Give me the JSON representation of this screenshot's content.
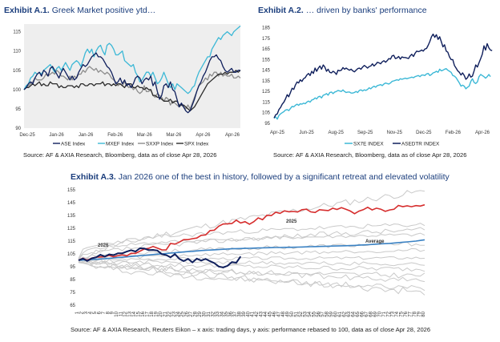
{
  "exhibits": {
    "a1": {
      "label": "Exhibit A.1.",
      "subtitle": " Greek Market positive ytd…",
      "source": "Source: AF & AXIA Research, Bloomberg, data as of close Apr 28, 2026"
    },
    "a2": {
      "label": "Exhibit A.2.",
      "subtitle": " … driven by banks' performance",
      "source": "Source: AF & AXIA Research, Bloomberg, data as of close Apr 28, 2026"
    },
    "a3": {
      "label": "Exhibit A.3.",
      "subtitle": " Jan 2026 one of the best in history, followed by a significant retreat and elevated volatility",
      "source": "Source: AF & AXIA Research, Reuters Eikon – x axis: trading days, y axis: performance rebased to 100, data as of close Apr 28, 2026"
    }
  },
  "colors": {
    "navy": "#0f1f5c",
    "teal": "#3cb8d6",
    "gray": "#8c8c8c",
    "dark": "#2b2b2b",
    "red": "#d62d2d",
    "blue": "#3a82c4",
    "light": "#c9c9c9"
  },
  "chart_data": [
    {
      "type": "line",
      "title": "Greek Market positive ytd…",
      "x_ticks": [
        "Dec-25",
        "Jan-26",
        "Jan-26",
        "Feb-26",
        "Mar-26",
        "Mar-26",
        "Apr-26",
        "Apr-26"
      ],
      "y_ticks": [
        90,
        95,
        100,
        105,
        110,
        115
      ],
      "ylim": [
        90,
        117
      ],
      "n_points": 100,
      "series": [
        {
          "name": "ASE Index",
          "color": "#0f1f5c",
          "values": [
            100,
            100.5,
            101.5,
            102,
            101.5,
            103,
            104,
            104.5,
            103.5,
            105,
            104.5,
            103.5,
            105.5,
            106,
            105,
            104,
            103,
            104.5,
            105.5,
            104.5,
            103.5,
            102.5,
            103.5,
            102.5,
            103,
            104.5,
            105.5,
            106.5,
            106,
            106.5,
            107.5,
            108.5,
            109,
            109.5,
            108.5,
            108.5,
            108,
            107,
            106,
            105.5,
            104.5,
            103,
            101.5,
            102,
            103,
            101.5,
            102.5,
            101,
            101.5,
            100.5,
            101.5,
            103,
            103.5,
            103,
            101.5,
            102.5,
            103,
            102.5,
            103.5,
            101,
            102,
            99.5,
            97.5,
            98.5,
            101,
            101.5,
            100.5,
            102,
            100,
            99.5,
            97.5,
            95.5,
            96.5,
            95.5,
            94.5,
            94,
            94.5,
            96,
            97.5,
            99.5,
            101,
            102,
            103.5,
            104.5,
            106,
            107.5,
            108.5,
            108.5,
            109,
            108,
            107.5,
            106,
            105,
            104.5,
            105,
            105.5,
            104.5,
            104.5,
            105,
            105
          ]
        },
        {
          "name": "MXEF Index",
          "color": "#3cb8d6",
          "values": [
            100,
            101,
            101.5,
            103,
            103.5,
            104.5,
            104,
            104.5,
            104,
            105,
            105.5,
            106,
            106.5,
            105.5,
            104.5,
            105.5,
            106,
            105,
            106,
            107,
            106,
            105,
            106.5,
            107,
            107.5,
            107,
            106,
            107.5,
            109.5,
            110.5,
            109.5,
            110.5,
            108.5,
            110,
            111,
            111.5,
            110,
            109,
            111.5,
            112,
            111.5,
            110.5,
            109,
            109,
            109.5,
            110,
            107.5,
            107,
            106.5,
            106,
            106.5,
            104.5,
            103.5,
            102,
            102.5,
            103.5,
            104.5,
            104.5,
            103.5,
            104.5,
            103,
            101.5,
            102,
            103,
            104.5,
            103,
            101.5,
            100.5,
            101.5,
            100,
            101.5,
            101,
            100.5,
            100,
            99.5,
            99,
            99.5,
            100.5,
            101,
            103,
            104.5,
            105.5,
            106.5,
            107.5,
            108.5,
            108.5,
            110.5,
            111.5,
            112.5,
            113.5,
            113,
            114,
            114.5,
            115,
            114.5,
            114,
            115,
            115.5,
            116,
            116.5
          ]
        },
        {
          "name": "SXXP Index",
          "color": "#8c8c8c",
          "values": [
            100,
            100.5,
            101,
            101.5,
            102,
            103,
            102.5,
            102.5,
            102.5,
            103,
            104,
            103.5,
            104,
            104.5,
            104,
            105,
            104.5,
            103.5,
            103.5,
            103,
            102.5,
            103.5,
            102.5,
            103.5,
            103,
            104,
            104,
            105,
            104.5,
            105.5,
            106,
            105.5,
            105,
            105.5,
            104.5,
            105,
            104.5,
            104,
            104.5,
            104,
            103,
            102.5,
            102,
            101,
            101.5,
            101,
            102,
            101,
            100.5,
            101,
            100,
            100.5,
            99.5,
            99,
            99.5,
            101,
            99.5,
            99.5,
            100,
            98.5,
            98,
            99,
            98.5,
            98,
            97,
            98,
            97.5,
            96,
            97,
            96.5,
            96,
            95.5,
            96,
            95.5,
            95,
            96,
            95,
            96.5,
            98,
            99.5,
            101,
            101.5,
            102,
            103,
            102.5,
            104,
            103.5,
            104.5,
            104.5,
            103.5,
            104.5,
            103.5,
            104,
            103.5,
            103.5,
            104,
            103,
            103,
            103.5,
            103
          ]
        },
        {
          "name": "SPX Index",
          "color": "#2b2b2b",
          "values": [
            100,
            100.5,
            100.5,
            101,
            101.5,
            101,
            101.5,
            102,
            101,
            101.5,
            101,
            101,
            102,
            101.5,
            101.5,
            101.5,
            100.5,
            101,
            100.5,
            100.5,
            101,
            101,
            101,
            100.5,
            101,
            100.5,
            101.5,
            101.5,
            101,
            101,
            101.5,
            101.5,
            101,
            101.5,
            101.5,
            101.5,
            102,
            101,
            101.5,
            101.5,
            101,
            101.5,
            101,
            101.5,
            101.5,
            101,
            100.5,
            101.5,
            101.5,
            101.5,
            100.5,
            100.5,
            101,
            100.5,
            100.5,
            100,
            100.5,
            100,
            100,
            98.5,
            98.5,
            98,
            98,
            97.5,
            97,
            97,
            97,
            97.5,
            96.5,
            97,
            97,
            96,
            96,
            96,
            95.5,
            95,
            94.5,
            95,
            95.5,
            96.5,
            97.5,
            98.5,
            99.5,
            100.5,
            101.5,
            102,
            102.5,
            103,
            103.5,
            104,
            104,
            104,
            104.5,
            104,
            104.5,
            104.5,
            104.5,
            105,
            104.5,
            105
          ]
        }
      ]
    },
    {
      "type": "line",
      "title": "… driven by banks' performance",
      "x_ticks": [
        "Apr-25",
        "Jun-25",
        "Aug-25",
        "Sep-25",
        "Nov-25",
        "Dec-25",
        "Feb-26",
        "Apr-26"
      ],
      "y_ticks": [
        95,
        105,
        115,
        125,
        135,
        145,
        155,
        165,
        175,
        185
      ],
      "ylim": [
        95,
        187
      ],
      "n_points": 130,
      "series": [
        {
          "name": "SX7E INDEX",
          "color": "#3cb8d6",
          "values": [
            100,
            101,
            99,
            102.5,
            104,
            105,
            106,
            107.5,
            108,
            107,
            109,
            111,
            110.5,
            112,
            113,
            112,
            113.5,
            113,
            114,
            113.5,
            115,
            116,
            115,
            117,
            117.5,
            119,
            118,
            120,
            120.5,
            119,
            121.5,
            122,
            123,
            121.5,
            124,
            124.5,
            123,
            124.5,
            125,
            126,
            125.5,
            125,
            126.5,
            125,
            124,
            124.5,
            124.5,
            123.5,
            123.5,
            124,
            125,
            124,
            126,
            126.5,
            125.5,
            126.5,
            126,
            127,
            128.5,
            127.5,
            129,
            130,
            129,
            130.5,
            131,
            131.5,
            130.5,
            132,
            133,
            132.5,
            132,
            133,
            134.5,
            135,
            135.5,
            136,
            135.5,
            137,
            136.5,
            137,
            137.5,
            137,
            137.5,
            138,
            138.5,
            138,
            139,
            139.5,
            140,
            139,
            140.5,
            140.5,
            140,
            141.5,
            142,
            140,
            141,
            142.5,
            143,
            144,
            143,
            146,
            144.5,
            145,
            146,
            146.5,
            145,
            144,
            143,
            140,
            139.5,
            138,
            135.5,
            133,
            130,
            131,
            130,
            127.5,
            129,
            130,
            134.5,
            137,
            133.5,
            132.5,
            134,
            139,
            141,
            140,
            139,
            137.5,
            139,
            141,
            139
          ]
        },
        {
          "name": "ASEDTR INDEX",
          "color": "#0f1f5c",
          "values": [
            100,
            103,
            104,
            108,
            110,
            113,
            115,
            118,
            122,
            120,
            124,
            128,
            127,
            131,
            134,
            133,
            136,
            134.5,
            137,
            138,
            140.5,
            142,
            140,
            144,
            142,
            147,
            144,
            147,
            149,
            146,
            150,
            148,
            144,
            146,
            143,
            142.5,
            144,
            143,
            141,
            145,
            144.5,
            145,
            147.5,
            146,
            147,
            146,
            145,
            146,
            144.5,
            143.5,
            145,
            146.5,
            147,
            146,
            148,
            149.5,
            148.5,
            147,
            148.5,
            149,
            151,
            149,
            150.5,
            152.5,
            152,
            151,
            153,
            154,
            152.5,
            154,
            156,
            155.5,
            158.5,
            159,
            156,
            156.5,
            158,
            155.5,
            157.5,
            157,
            157,
            156.5,
            156,
            158.5,
            160,
            158,
            161,
            163,
            162.5,
            163,
            164,
            163,
            165,
            165.5,
            168.5,
            172,
            176.5,
            179,
            176,
            178.5,
            174,
            176.5,
            172,
            167,
            169,
            163,
            162,
            157.5,
            155,
            155,
            149.5,
            147,
            144.5,
            143,
            140.5,
            142.5,
            140,
            136.5,
            138,
            141.5,
            138.5,
            139.5,
            144.5,
            150,
            148,
            152,
            156,
            160,
            168,
            164,
            170,
            166,
            164,
            163.5
          ]
        }
      ]
    },
    {
      "type": "line",
      "title": "Jan 2026 one of the best in history, followed by a significant retreat and elevated volatility",
      "xlabel": "trading days",
      "ylabel": "performance rebased to 100",
      "y_ticks": [
        65,
        75,
        85,
        95,
        105,
        115,
        125,
        135,
        145,
        155
      ],
      "ylim": [
        65,
        155
      ],
      "x_range": [
        1,
        80
      ],
      "annotations": [
        "2026",
        "2025",
        "Average"
      ],
      "series": [
        {
          "name": "2025",
          "color": "#d62d2d",
          "values": [
            100,
            101.6,
            100.1,
            101.7,
            102.5,
            102.6,
            102.9,
            103.8,
            102.7,
            103.7,
            104.2,
            103.5,
            105.5,
            105.4,
            107.1,
            108.8,
            109.3,
            110.8,
            109.5,
            108.2,
            108.1,
            113.1,
            112.6,
            114.2,
            116.1,
            116.1,
            116.9,
            117.4,
            119.5,
            119.8,
            123.2,
            123.5,
            126.6,
            128.3,
            128.5,
            128.7,
            131.3,
            129.1,
            130.1,
            128.1,
            130.1,
            133.1,
            131.7,
            135.2,
            134.9,
            137.5,
            136.6,
            138.6,
            137.9,
            138.1,
            137.7,
            139.5,
            139.9,
            137.8,
            137.3,
            139.5,
            139.1,
            138.8,
            140.6,
            139.7,
            141.1,
            139.9,
            138.5,
            136.4,
            138.4,
            139.5,
            141.4,
            139.3,
            140.7,
            139.9,
            138.2,
            139.3,
            139.8,
            142.8,
            141.9,
            142.5,
            141.8,
            142.7,
            142.3,
            143.3
          ]
        },
        {
          "name": "2026",
          "color": "#0f1f5c",
          "values": [
            100,
            101.3,
            99.5,
            101.5,
            102.3,
            104.4,
            102.9,
            104.7,
            104,
            105.5,
            105.5,
            106.8,
            107.9,
            106.9,
            109.4,
            109.2,
            108,
            108.1,
            107.6,
            104.8,
            104.1,
            102.3,
            104.9,
            101.1,
            99.4,
            101.1,
            98.4,
            101.3,
            99.8,
            101.1,
            99.3,
            97.8,
            95.1,
            94.5,
            95.7,
            98.6,
            98.1,
            103
          ]
        },
        {
          "name": "Average",
          "color": "#3a82c4",
          "values": [
            100,
            100.2,
            100.4,
            100.6,
            100.8,
            101,
            101.2,
            101.5,
            101.8,
            102.1,
            102.4,
            102.7,
            103,
            103.3,
            103.6,
            103.9,
            104.2,
            104.5,
            104.8,
            105,
            105.3,
            105.6,
            105.9,
            106.2,
            106.5,
            106.8,
            107,
            107.3,
            107.6,
            107.8,
            108,
            108.2,
            108.4,
            108.6,
            108.8,
            109,
            109.1,
            109.2,
            109.3,
            109.4,
            109.5,
            109.6,
            109.7,
            109.8,
            109.9,
            110,
            110,
            110.1,
            110.1,
            110.2,
            110.3,
            110.4,
            110.5,
            110.6,
            110.7,
            110.8,
            110.9,
            111,
            111.1,
            111.2,
            111.3,
            111.4,
            111.5,
            111.6,
            111.8,
            112,
            112.2,
            112.4,
            112.6,
            112.8,
            113,
            113.2,
            113.5,
            113.8,
            114.1,
            114.4,
            114.7,
            115,
            115.5,
            116
          ]
        }
      ]
    }
  ]
}
